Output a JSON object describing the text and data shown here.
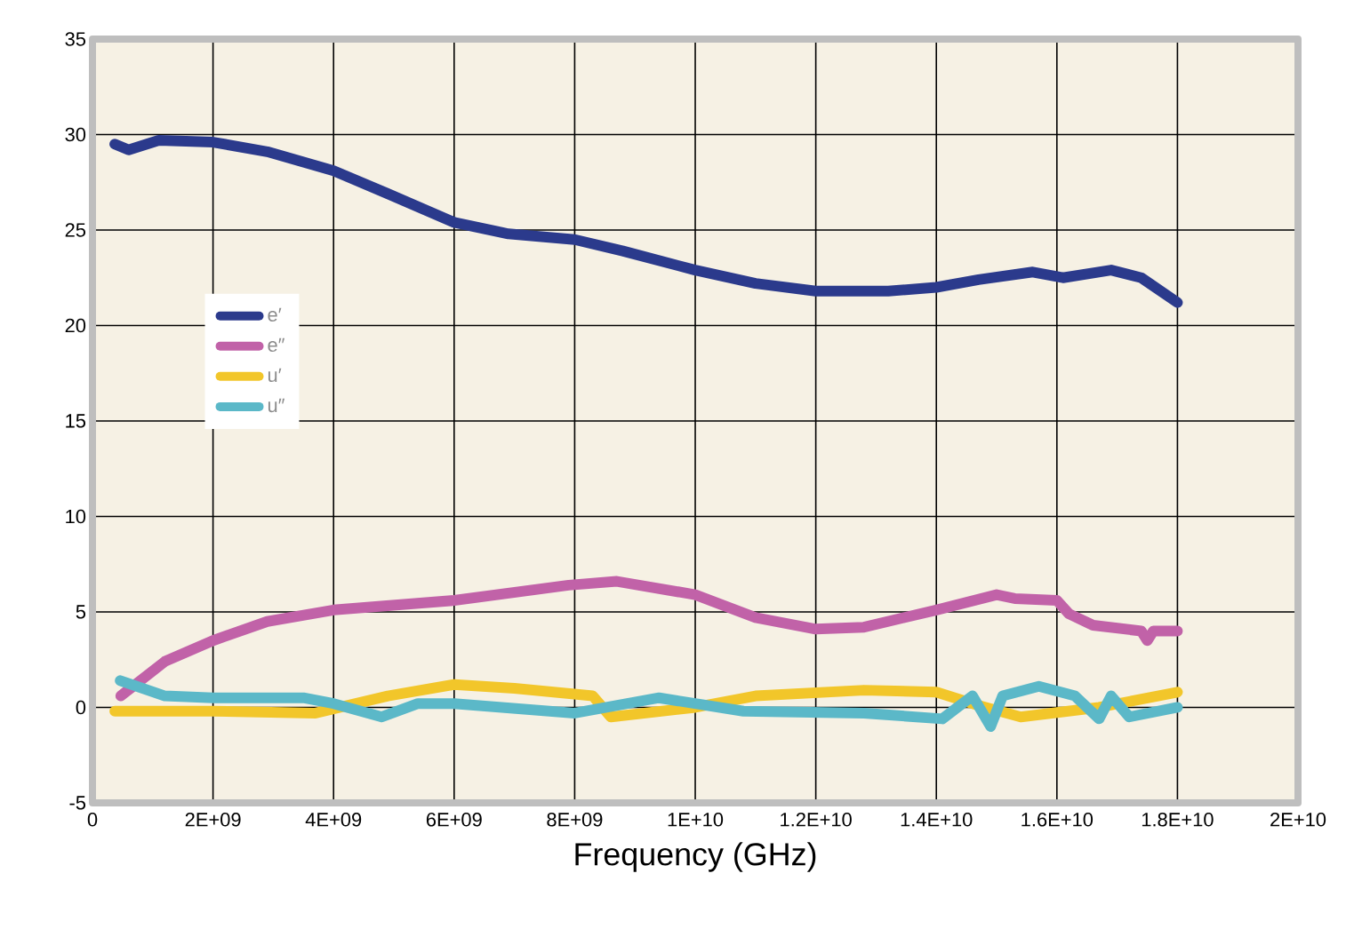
{
  "chart_data": {
    "type": "line",
    "xlabel": "Frequency (GHz)",
    "xlim": [
      0,
      20000000000
    ],
    "ylim": [
      -5,
      35
    ],
    "xticks": [
      0,
      {
        "value": 2000000000,
        "label": "2E+09"
      },
      {
        "value": 4000000000,
        "label": "4E+09"
      },
      {
        "value": 6000000000,
        "label": "6E+09"
      },
      {
        "value": 8000000000,
        "label": "8E+09"
      },
      {
        "value": 10000000000,
        "label": "1E+10"
      },
      {
        "value": 12000000000,
        "label": "1.2E+10"
      },
      {
        "value": 14000000000,
        "label": "1.4E+10"
      },
      {
        "value": 16000000000,
        "label": "1.6E+10"
      },
      {
        "value": 18000000000,
        "label": "1.8E+10"
      },
      {
        "value": 20000000000,
        "label": "2E+10"
      }
    ],
    "yticks": [
      -5,
      0,
      5,
      10,
      15,
      20,
      25,
      30,
      35
    ],
    "grid": true,
    "legend": "left",
    "marker": "none",
    "line_style": "solid",
    "series": [
      {
        "name": "e′",
        "color": "#2b3a8c",
        "x": [
          370000000,
          600000000,
          1100000000,
          2000000000,
          2900000000,
          4000000000,
          4900000000,
          6000000000,
          6900000000,
          8000000000,
          8800000000,
          10000000000,
          11000000000,
          12000000000,
          13200000000,
          14000000000,
          14700000000,
          15600000000,
          16100000000,
          16900000000,
          17400000000,
          18000000000
        ],
        "values": [
          29.5,
          29.2,
          29.7,
          29.6,
          29.1,
          28.1,
          26.9,
          25.4,
          24.8,
          24.5,
          23.9,
          22.9,
          22.2,
          21.8,
          21.8,
          22.0,
          22.4,
          22.8,
          22.5,
          22.9,
          22.5,
          21.2
        ]
      },
      {
        "name": "e″",
        "color": "#c162a8",
        "x": [
          470000000,
          1200000000,
          2000000000,
          2900000000,
          4000000000,
          6000000000,
          7900000000,
          8700000000,
          10000000000,
          11000000000,
          12000000000,
          12800000000,
          14000000000,
          15000000000,
          15300000000,
          16000000000,
          16200000000,
          16600000000,
          17400000000,
          17500000000,
          17600000000,
          18000000000
        ],
        "values": [
          0.6,
          2.4,
          3.5,
          4.5,
          5.1,
          5.6,
          6.4,
          6.6,
          5.9,
          4.7,
          4.1,
          4.2,
          5.1,
          5.9,
          5.7,
          5.6,
          4.9,
          4.3,
          4.0,
          3.5,
          4.0,
          4.0
        ]
      },
      {
        "name": "u′",
        "color": "#f2c62a",
        "x": [
          370000000,
          2000000000,
          3700000000,
          4900000000,
          6000000000,
          7000000000,
          8300000000,
          8600000000,
          10000000000,
          11000000000,
          12800000000,
          14000000000,
          14700000000,
          15400000000,
          16700000000,
          18000000000
        ],
        "values": [
          -0.2,
          -0.2,
          -0.3,
          0.6,
          1.2,
          1.0,
          0.6,
          -0.5,
          0.0,
          0.6,
          0.9,
          0.8,
          0.1,
          -0.5,
          0.0,
          0.8
        ]
      },
      {
        "name": "u″",
        "color": "#5bb8c8",
        "x": [
          460000000,
          1200000000,
          2000000000,
          3500000000,
          4000000000,
          4800000000,
          5400000000,
          6000000000,
          8000000000,
          9400000000,
          10800000000,
          12800000000,
          14100000000,
          14600000000,
          14900000000,
          15100000000,
          15700000000,
          16300000000,
          16700000000,
          16900000000,
          17200000000,
          18000000000
        ],
        "values": [
          1.4,
          0.6,
          0.5,
          0.5,
          0.2,
          -0.5,
          0.2,
          0.2,
          -0.3,
          0.5,
          -0.2,
          -0.3,
          -0.6,
          0.6,
          -1.0,
          0.6,
          1.1,
          0.6,
          -0.6,
          0.6,
          -0.5,
          0.0
        ]
      }
    ]
  }
}
